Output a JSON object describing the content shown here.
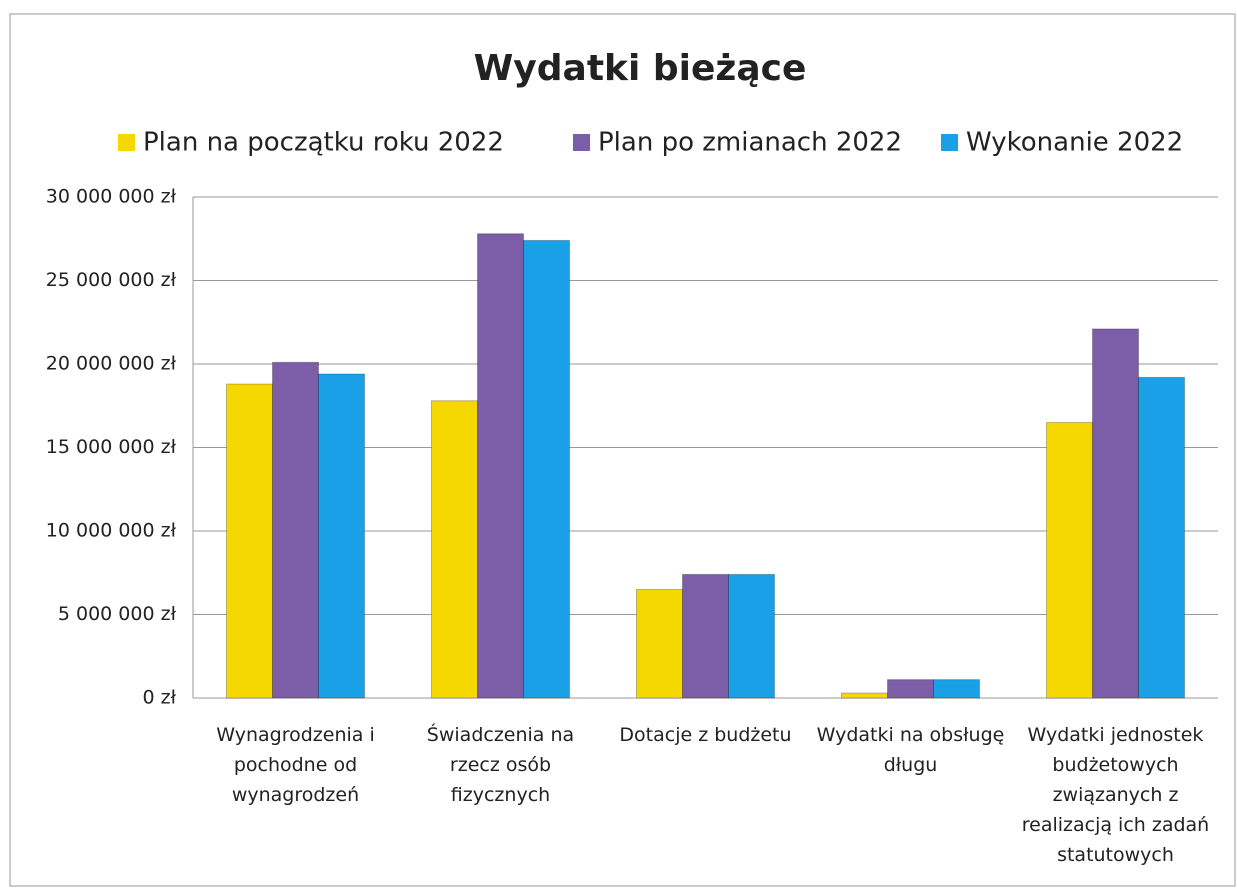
{
  "chart_data": {
    "type": "bar",
    "title": "Wydatki bieżące",
    "categories": [
      "Wynagrodzenia i pochodne od wynagrodzeń",
      "Świadczenia na rzecz osób fizycznych",
      "Dotacje z budżetu",
      "Wydatki na obsługę długu",
      "Wydatki jednostek budżetowych związanych z realizacją ich zadań statutowych"
    ],
    "series": [
      {
        "name": "Plan na początku roku 2022",
        "color": "#f5d800",
        "values": [
          18800000,
          17800000,
          6500000,
          300000,
          16500000
        ]
      },
      {
        "name": "Plan po zmianach 2022",
        "color": "#7b5ea7",
        "values": [
          20100000,
          27800000,
          7400000,
          1100000,
          22100000
        ]
      },
      {
        "name": "Wykonanie 2022",
        "color": "#1aa0e6",
        "values": [
          19400000,
          27400000,
          7400000,
          1100000,
          19200000
        ]
      }
    ],
    "ylim": [
      0,
      30000000
    ],
    "yticks": [
      {
        "value": 0,
        "label": "0 zł"
      },
      {
        "value": 5000000,
        "label": "5 000 000 zł"
      },
      {
        "value": 10000000,
        "label": "10 000 000 zł"
      },
      {
        "value": 15000000,
        "label": "15 000 000 zł"
      },
      {
        "value": 20000000,
        "label": "20 000 000 zł"
      },
      {
        "value": 25000000,
        "label": "25 000 000 zł"
      },
      {
        "value": 30000000,
        "label": "30 000 000 zł"
      }
    ],
    "grid": true,
    "legend": "top"
  }
}
